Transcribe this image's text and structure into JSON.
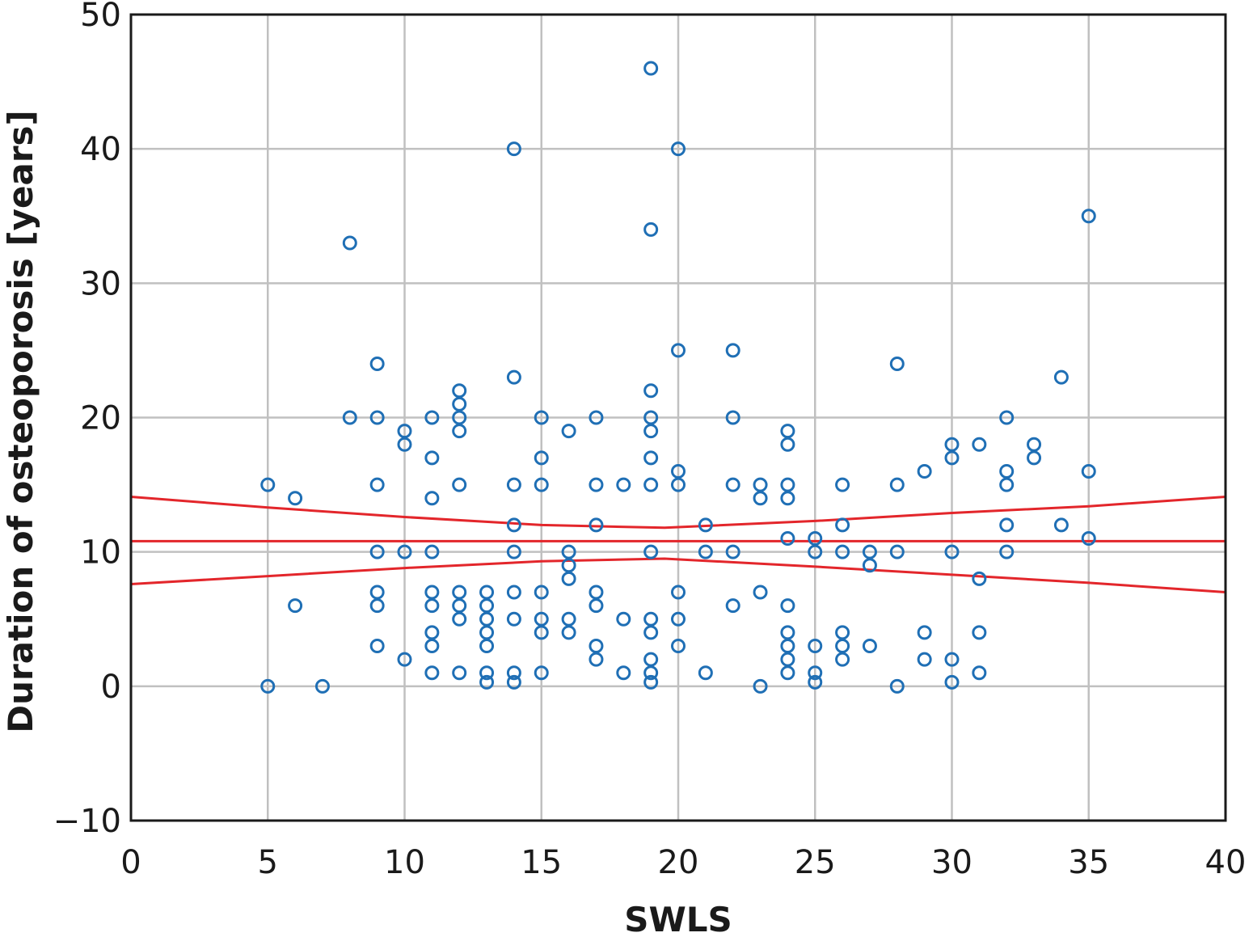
{
  "chart_data": {
    "type": "scatter",
    "title": "",
    "xlabel": "SWLS",
    "ylabel": "Duration of osteoporosis [years]",
    "xlim": [
      0,
      40
    ],
    "ylim": [
      -10,
      50
    ],
    "xticks": [
      0,
      5,
      10,
      15,
      20,
      25,
      30,
      35,
      40
    ],
    "yticks": [
      -10,
      0,
      10,
      20,
      30,
      40,
      50
    ],
    "xtick_labels": [
      "0",
      "5",
      "10",
      "15",
      "20",
      "25",
      "30",
      "35",
      "40"
    ],
    "ytick_labels": [
      "−10",
      "0",
      "10",
      "20",
      "30",
      "40",
      "50"
    ],
    "grid": true,
    "colors": {
      "points": "#1f6fb5",
      "regression_line": "#e3262b",
      "grid": "#c0c0c0",
      "axes": "#1a1a1a"
    },
    "series": [
      {
        "marker": "open-circle",
        "points": [
          [
            5,
            15
          ],
          [
            5,
            0
          ],
          [
            6,
            14
          ],
          [
            6,
            6
          ],
          [
            7,
            0
          ],
          [
            8,
            33
          ],
          [
            8,
            20
          ],
          [
            9,
            24
          ],
          [
            9,
            20
          ],
          [
            9,
            15
          ],
          [
            9,
            10
          ],
          [
            9,
            7
          ],
          [
            9,
            6
          ],
          [
            9,
            3
          ],
          [
            10,
            19
          ],
          [
            10,
            18
          ],
          [
            10,
            10
          ],
          [
            10,
            2
          ],
          [
            11,
            20
          ],
          [
            11,
            17
          ],
          [
            11,
            14
          ],
          [
            11,
            10
          ],
          [
            11,
            7
          ],
          [
            11,
            6
          ],
          [
            11,
            4
          ],
          [
            11,
            3
          ],
          [
            11,
            1
          ],
          [
            12,
            22
          ],
          [
            12,
            21
          ],
          [
            12,
            20
          ],
          [
            12,
            19
          ],
          [
            12,
            15
          ],
          [
            12,
            7
          ],
          [
            12,
            6
          ],
          [
            12,
            5
          ],
          [
            12,
            1
          ],
          [
            13,
            7
          ],
          [
            13,
            6
          ],
          [
            13,
            5
          ],
          [
            13,
            4
          ],
          [
            13,
            3
          ],
          [
            13,
            1
          ],
          [
            13,
            0.3
          ],
          [
            14,
            40
          ],
          [
            14,
            23
          ],
          [
            14,
            15
          ],
          [
            14,
            12
          ],
          [
            14,
            10
          ],
          [
            14,
            7
          ],
          [
            14,
            5
          ],
          [
            14,
            1
          ],
          [
            14,
            0.3
          ],
          [
            15,
            20
          ],
          [
            15,
            17
          ],
          [
            15,
            15
          ],
          [
            15,
            7
          ],
          [
            15,
            5
          ],
          [
            15,
            4
          ],
          [
            15,
            1
          ],
          [
            16,
            19
          ],
          [
            16,
            10
          ],
          [
            16,
            9
          ],
          [
            16,
            8
          ],
          [
            16,
            5
          ],
          [
            16,
            4
          ],
          [
            17,
            20
          ],
          [
            17,
            15
          ],
          [
            17,
            12
          ],
          [
            17,
            7
          ],
          [
            17,
            6
          ],
          [
            17,
            3
          ],
          [
            17,
            2
          ],
          [
            18,
            15
          ],
          [
            18,
            5
          ],
          [
            18,
            1
          ],
          [
            19,
            46
          ],
          [
            19,
            34
          ],
          [
            19,
            22
          ],
          [
            19,
            20
          ],
          [
            19,
            19
          ],
          [
            19,
            17
          ],
          [
            19,
            15
          ],
          [
            19,
            10
          ],
          [
            19,
            5
          ],
          [
            19,
            4
          ],
          [
            19,
            2
          ],
          [
            19,
            1
          ],
          [
            19,
            0.3
          ],
          [
            20,
            40
          ],
          [
            20,
            25
          ],
          [
            20,
            16
          ],
          [
            20,
            15
          ],
          [
            20,
            7
          ],
          [
            20,
            5
          ],
          [
            20,
            3
          ],
          [
            21,
            12
          ],
          [
            21,
            10
          ],
          [
            21,
            1
          ],
          [
            22,
            25
          ],
          [
            22,
            20
          ],
          [
            22,
            15
          ],
          [
            22,
            10
          ],
          [
            22,
            6
          ],
          [
            23,
            15
          ],
          [
            23,
            14
          ],
          [
            23,
            7
          ],
          [
            23,
            0
          ],
          [
            24,
            19
          ],
          [
            24,
            18
          ],
          [
            24,
            15
          ],
          [
            24,
            14
          ],
          [
            24,
            11
          ],
          [
            24,
            6
          ],
          [
            24,
            4
          ],
          [
            24,
            3
          ],
          [
            24,
            2
          ],
          [
            24,
            1
          ],
          [
            25,
            11
          ],
          [
            25,
            10
          ],
          [
            25,
            3
          ],
          [
            25,
            1
          ],
          [
            25,
            0.3
          ],
          [
            26,
            15
          ],
          [
            26,
            12
          ],
          [
            26,
            10
          ],
          [
            26,
            4
          ],
          [
            26,
            3
          ],
          [
            26,
            2
          ],
          [
            27,
            10
          ],
          [
            27,
            9
          ],
          [
            27,
            3
          ],
          [
            28,
            24
          ],
          [
            28,
            15
          ],
          [
            28,
            10
          ],
          [
            28,
            0
          ],
          [
            29,
            16
          ],
          [
            29,
            4
          ],
          [
            29,
            2
          ],
          [
            30,
            18
          ],
          [
            30,
            17
          ],
          [
            30,
            10
          ],
          [
            30,
            2
          ],
          [
            30,
            0.3
          ],
          [
            31,
            18
          ],
          [
            31,
            8
          ],
          [
            31,
            4
          ],
          [
            31,
            1
          ],
          [
            32,
            20
          ],
          [
            32,
            16
          ],
          [
            32,
            15
          ],
          [
            32,
            12
          ],
          [
            32,
            10
          ],
          [
            33,
            18
          ],
          [
            33,
            17
          ],
          [
            34,
            23
          ],
          [
            34,
            12
          ],
          [
            35,
            35
          ],
          [
            35,
            16
          ],
          [
            35,
            11
          ]
        ]
      }
    ],
    "regression": {
      "fit": [
        [
          0,
          10.8
        ],
        [
          40,
          10.8
        ]
      ],
      "upper_ci": [
        [
          0,
          14.1
        ],
        [
          5,
          13.3
        ],
        [
          10,
          12.6
        ],
        [
          15,
          12.0
        ],
        [
          19.5,
          11.8
        ],
        [
          25,
          12.3
        ],
        [
          30,
          12.9
        ],
        [
          35,
          13.4
        ],
        [
          40,
          14.1
        ]
      ],
      "lower_ci": [
        [
          0,
          7.6
        ],
        [
          5,
          8.2
        ],
        [
          10,
          8.8
        ],
        [
          15,
          9.3
        ],
        [
          19.5,
          9.5
        ],
        [
          25,
          8.9
        ],
        [
          30,
          8.3
        ],
        [
          35,
          7.7
        ],
        [
          40,
          7.0
        ]
      ]
    }
  }
}
